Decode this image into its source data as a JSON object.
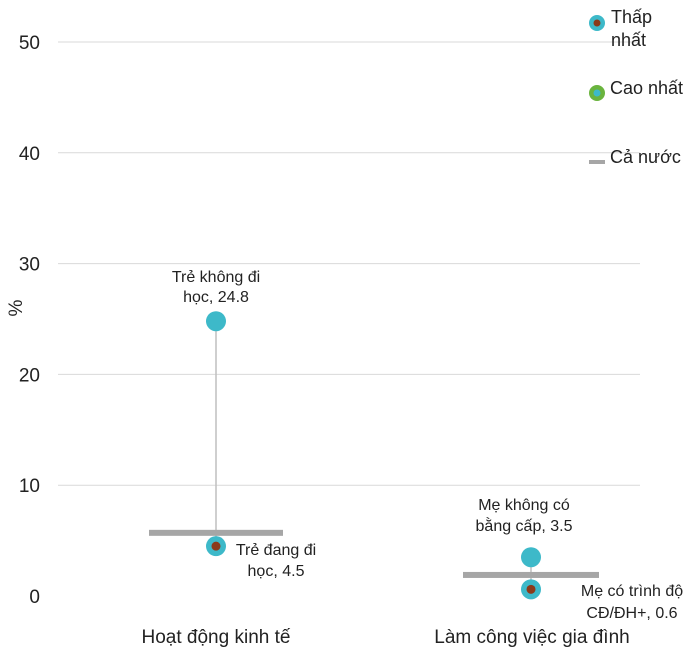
{
  "chart_data": {
    "type": "scatter",
    "ylabel": "%",
    "ylim": [
      0,
      50
    ],
    "yticks": [
      "0",
      "10",
      "20",
      "30",
      "40",
      "50"
    ],
    "categories": [
      "Hoạt động kinh tế",
      "Làm công việc gia đình"
    ],
    "series": [
      {
        "name": "Thấp nhất",
        "values": [
          4.5,
          0.6
        ]
      },
      {
        "name": "Cao nhất",
        "values": [
          24.8,
          3.5
        ]
      },
      {
        "name": "Cả nước",
        "values": [
          5.7,
          1.9
        ]
      }
    ],
    "annotations": [
      {
        "lines": [
          "Trẻ không đi",
          "học, 24.8"
        ],
        "category": 0,
        "value": 24.8
      },
      {
        "lines": [
          "Trẻ đang đi",
          "học, 4.5"
        ],
        "category": 0,
        "value": 4.5
      },
      {
        "lines": [
          "Mẹ không có",
          "bằng cấp, 3.5"
        ],
        "category": 1,
        "value": 3.5
      },
      {
        "lines": [
          "Mẹ có trình độ",
          "CĐ/ĐH+, 0.6"
        ],
        "category": 1,
        "value": 0.6
      }
    ],
    "legend": {
      "placement": "top-right",
      "items": [
        {
          "label_lines": [
            "Thấp",
            "nhất"
          ],
          "marker": "dot-cyan-brown"
        },
        {
          "label_lines": [
            "Cao nhất"
          ],
          "marker": "dot-green-cyan"
        },
        {
          "label_lines": [
            "Cả nước"
          ],
          "marker": "dash-gray"
        }
      ]
    },
    "grid": true,
    "colors": {
      "high_dot": "#3db9c9",
      "low_dot_inner": "#8b3a1a",
      "national_bar": "#a6a6a6",
      "connector": "#bfbfbf",
      "legend_green": "#6ab43e",
      "grid": "#d9d9d9"
    }
  }
}
